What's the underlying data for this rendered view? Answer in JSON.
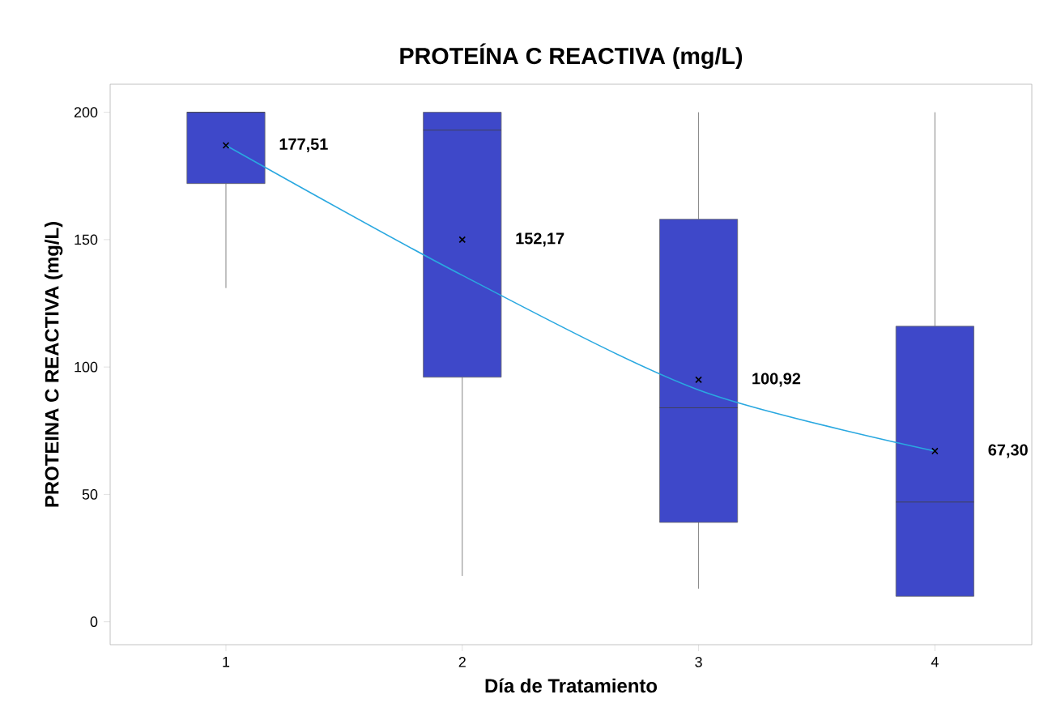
{
  "chart_data": {
    "type": "box",
    "title": "PROTEÍNA C REACTIVA (mg/L)",
    "xlabel": "Día de Tratamiento",
    "ylabel": "PROTEINA C REACTIVA (mg/L)",
    "categories": [
      "1",
      "2",
      "3",
      "4"
    ],
    "ylim": [
      -9,
      211
    ],
    "yticks": [
      0,
      50,
      100,
      150,
      200
    ],
    "grid": false,
    "series": [
      {
        "type": "box",
        "color": "#3e48c9",
        "boxes": [
          {
            "low": 131,
            "q1": 172,
            "median": 200,
            "q3": 200,
            "high": 200,
            "mean": 187
          },
          {
            "low": 18,
            "q1": 96,
            "median": 193,
            "q3": 200,
            "high": 200,
            "mean": 150
          },
          {
            "low": 13,
            "q1": 39,
            "median": 84,
            "q3": 158,
            "high": 200,
            "mean": 95
          },
          {
            "low": 10,
            "q1": 10,
            "median": 47,
            "q3": 116,
            "high": 200,
            "mean": 67
          }
        ]
      },
      {
        "type": "line",
        "color": "#2aa8e0",
        "x": [
          "1",
          "2",
          "3",
          "4"
        ],
        "values": [
          187,
          136,
          91,
          67
        ]
      }
    ],
    "annotations": [
      "177,51",
      "152,17",
      "100,92",
      "67,30"
    ]
  }
}
